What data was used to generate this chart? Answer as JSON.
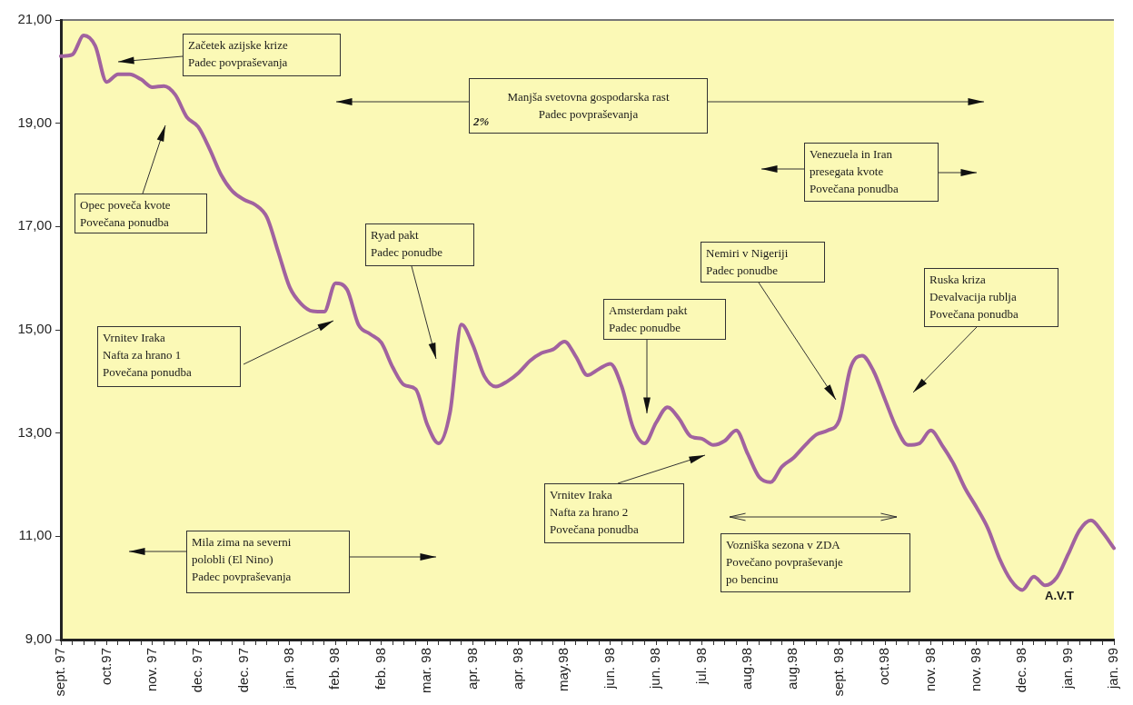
{
  "chart_data": {
    "type": "line",
    "annotations": [
      "Začetek azijske krize\nPadec povpraševanja",
      "Manjša svetovna gospodarska rast\nPadec povpraševanja",
      "2%",
      "Venezuela in Iran\npresegata kvote\nPovečana ponudba",
      "Opec poveča kvote\nPovečana ponudba",
      "Ryad pakt\nPadec ponudbe",
      "Nemiri v Nigeriji\nPadec ponudbe",
      "Ruska kriza\nDevalvacija rublja\nPovečana ponudba",
      "Amsterdam pakt\nPadec ponudbe",
      "Vrnitev Iraka\nNafta za hrano 1\nPovečana ponudba",
      "Vrnitev Iraka\nNafta za hrano 2\nPovečana ponudba",
      "Vozniška sezona v ZDA\nPovečano povpraševanje\npo bencinu",
      "Mila zima na severni\npolobli (El Nino)\nPadec povpraševanja",
      "A.V.T"
    ],
    "categories": [
      "sept. 97",
      null,
      null,
      null,
      "oct.97",
      null,
      null,
      null,
      "nov. 97",
      null,
      null,
      null,
      "dec. 97",
      null,
      null,
      null,
      "dec. 97",
      null,
      null,
      null,
      "jan. 98",
      null,
      null,
      null,
      "feb. 98",
      null,
      null,
      null,
      "feb. 98",
      null,
      null,
      null,
      "mar. 98",
      null,
      null,
      null,
      "apr. 98",
      null,
      null,
      null,
      "apr. 98",
      null,
      null,
      null,
      "may.98",
      null,
      null,
      null,
      "jun. 98",
      null,
      null,
      null,
      "jun. 98",
      null,
      null,
      null,
      "jul. 98",
      null,
      null,
      null,
      "aug.98",
      null,
      null,
      null,
      "aug.98",
      null,
      null,
      null,
      "sept. 98",
      null,
      null,
      null,
      "oct.98",
      null,
      null,
      null,
      "nov. 98",
      null,
      null,
      null,
      "nov. 98",
      null,
      null,
      null,
      "dec. 98",
      null,
      null,
      null,
      "jan. 99",
      null,
      null,
      null,
      "jan. 99"
    ],
    "series": [
      {
        "color": "#a1629f",
        "values": [
          20.3,
          20.33,
          20.7,
          20.5,
          19.8,
          19.95,
          19.95,
          19.85,
          19.7,
          19.72,
          19.55,
          19.12,
          18.93,
          18.5,
          18.0,
          17.68,
          17.52,
          17.42,
          17.18,
          16.5,
          15.82,
          15.5,
          15.36,
          15.35,
          15.9,
          15.78,
          15.1,
          14.92,
          14.75,
          14.27,
          13.93,
          13.85,
          13.17,
          12.8,
          13.4,
          15.1,
          14.7,
          14.1,
          13.9,
          14.0,
          14.17,
          14.4,
          14.55,
          14.62,
          14.77,
          14.48,
          14.12,
          14.24,
          14.34,
          13.9,
          13.1,
          12.8,
          13.2,
          13.5,
          13.28,
          12.94,
          12.89,
          12.77,
          12.85,
          13.05,
          12.6,
          12.15,
          12.05,
          12.35,
          12.52,
          12.76,
          12.97,
          13.05,
          13.25,
          14.27,
          14.5,
          14.2,
          13.65,
          13.1,
          12.77,
          12.8,
          13.05,
          12.76,
          12.4,
          11.93,
          11.56,
          11.15,
          10.57,
          10.15,
          9.96,
          10.22,
          10.05,
          10.2,
          10.65,
          11.12,
          11.31,
          11.08,
          10.77
        ]
      }
    ],
    "ylim": [
      9,
      21
    ],
    "yticks": [
      {
        "value": 9,
        "label": "9,00"
      },
      {
        "value": 11,
        "label": "11,00"
      },
      {
        "value": 13,
        "label": "13,00"
      },
      {
        "value": 15,
        "label": "15,00"
      },
      {
        "value": 17,
        "label": "17,00"
      },
      {
        "value": 19,
        "label": "19,00"
      },
      {
        "value": 21,
        "label": "21,00"
      }
    ],
    "marker": "none",
    "line_style": "solid"
  }
}
